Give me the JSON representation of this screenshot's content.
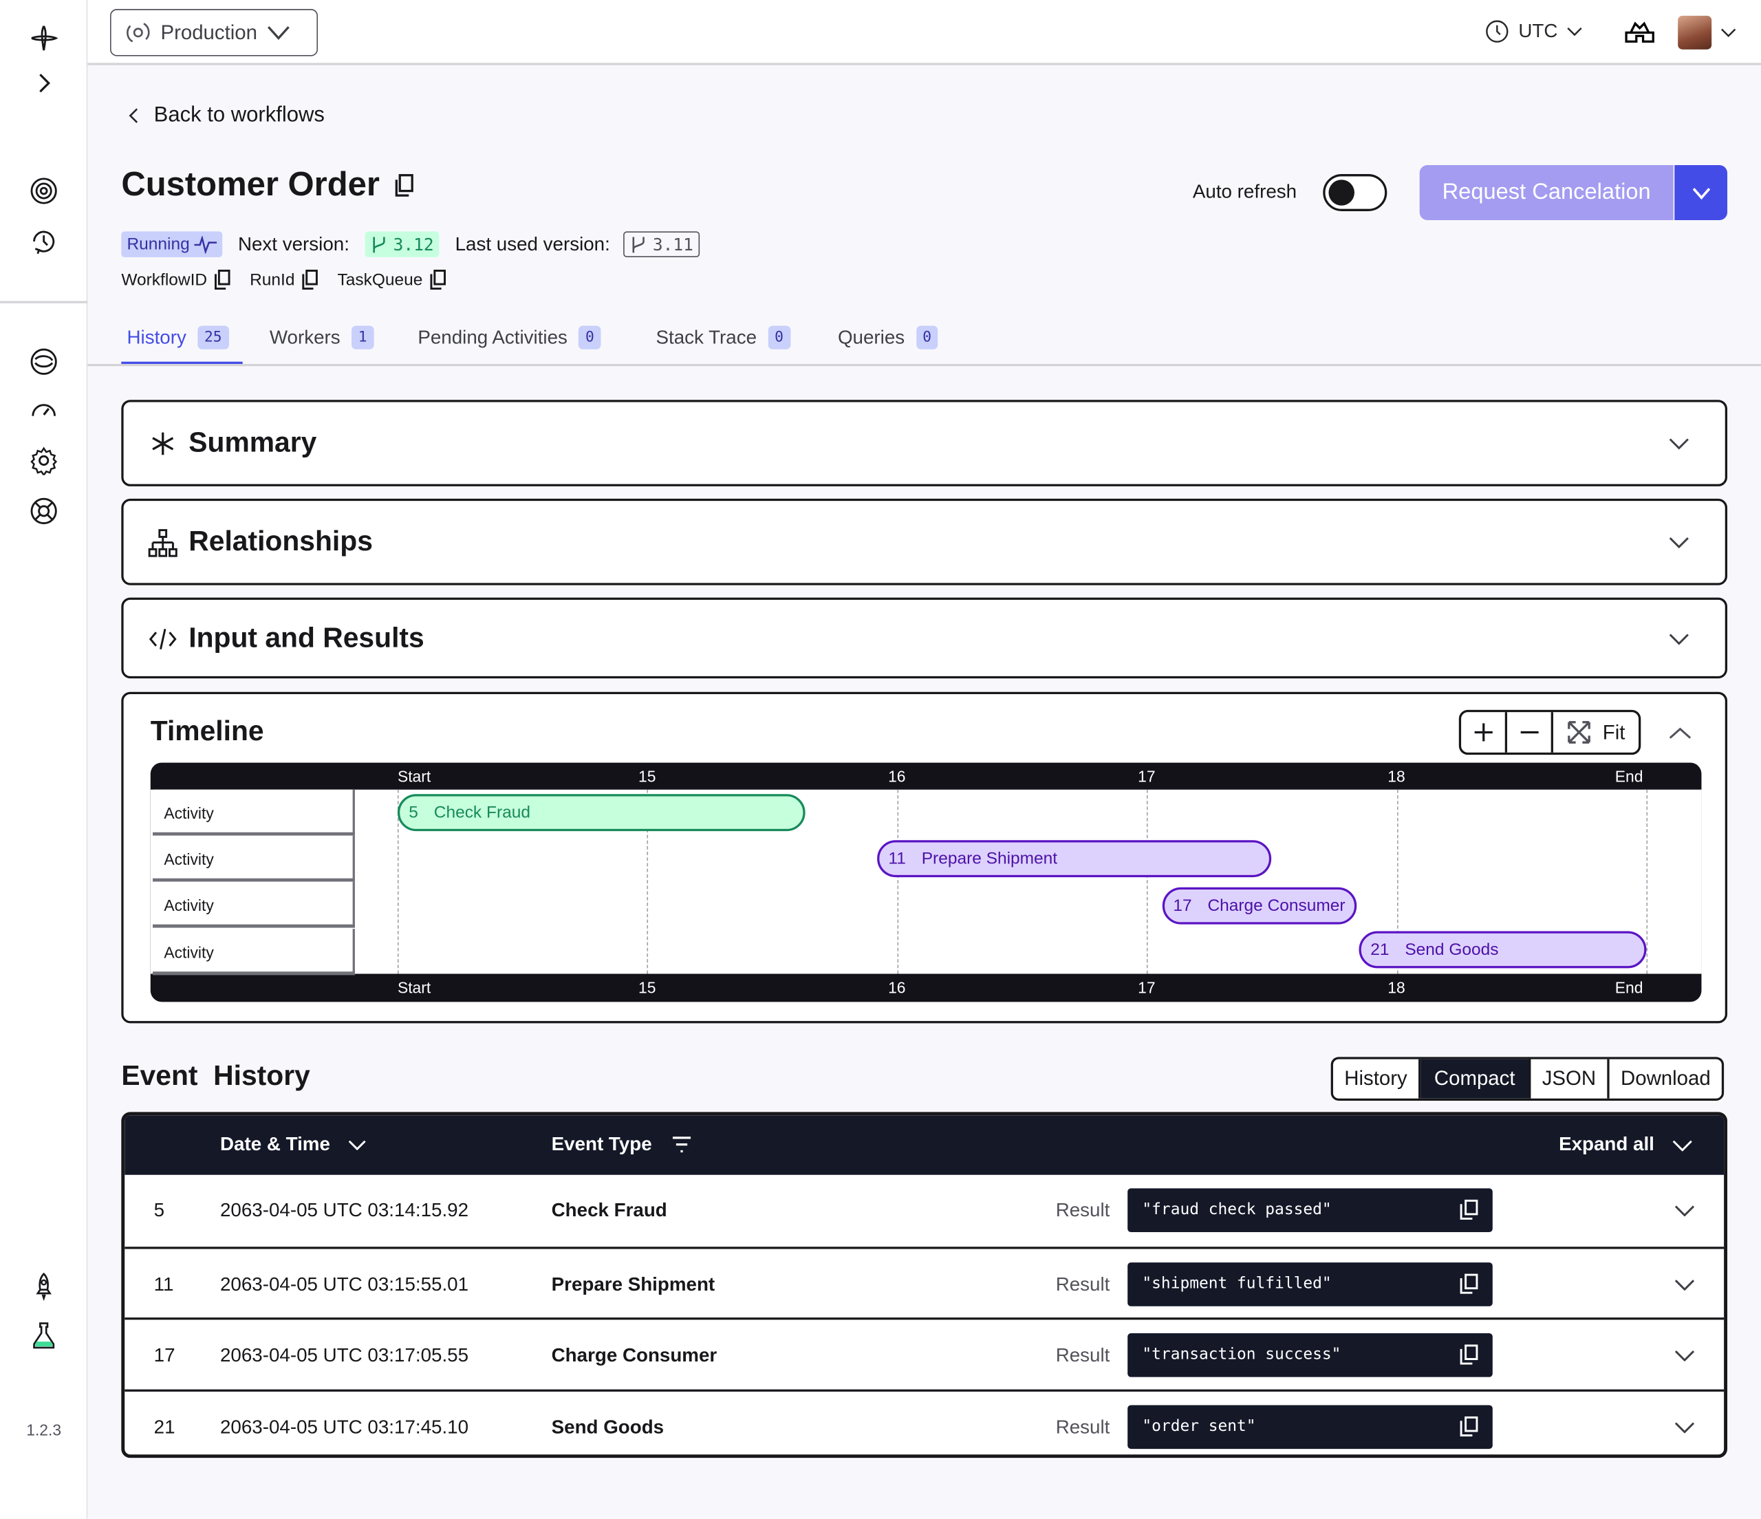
{
  "sidebar": {
    "version": "1.2.3"
  },
  "topbar": {
    "namespace": "Production",
    "timezone": "UTC"
  },
  "header": {
    "back_label": "Back to workflows",
    "title": "Customer Order",
    "auto_refresh_label": "Auto refresh",
    "auto_refresh_on": false,
    "cancel_label": "Request Cancelation",
    "status": "Running",
    "next_version_label": "Next version:",
    "next_version": "3.12",
    "last_version_label": "Last used version:",
    "last_version": "3.11",
    "ids": [
      "WorkflowID",
      "RunId",
      "TaskQueue"
    ]
  },
  "tabs": [
    {
      "label": "History",
      "count": "25",
      "active": true
    },
    {
      "label": "Workers",
      "count": "1"
    },
    {
      "label": "Pending Activities",
      "count": "0"
    },
    {
      "label": "Stack Trace",
      "count": "0"
    },
    {
      "label": "Queries",
      "count": "0"
    }
  ],
  "sections": {
    "summary": "Summary",
    "relationships": "Relationships",
    "input": "Input and Results",
    "timeline": "Timeline",
    "fit": "Fit"
  },
  "timeline": {
    "ticks": [
      "Start",
      "15",
      "16",
      "17",
      "18",
      "End"
    ],
    "row_label": "Activity",
    "bars": [
      {
        "id": "5",
        "name": "Check Fraud",
        "start": 0,
        "end": 1.63,
        "status": "completed"
      },
      {
        "id": "11",
        "name": "Prepare Shipment",
        "start": 1.92,
        "end": 3.5,
        "status": "running"
      },
      {
        "id": "17",
        "name": "Charge Consumer",
        "start": 3.06,
        "end": 3.84,
        "status": "running"
      },
      {
        "id": "21",
        "name": "Send Goods",
        "start": 3.85,
        "end": 5.0,
        "status": "running"
      }
    ]
  },
  "event_history": {
    "title": "Event  History",
    "views": [
      "History",
      "Compact",
      "JSON",
      "Download"
    ],
    "active_view": "Compact",
    "columns": {
      "date": "Date & Time",
      "type": "Event Type",
      "expand": "Expand all"
    },
    "rows": [
      {
        "id": "5",
        "date": "2063-04-05 UTC 03:14:15.92",
        "type": "Check Fraud",
        "label": "Result",
        "value": "\"fraud check passed\""
      },
      {
        "id": "11",
        "date": "2063-04-05 UTC 03:15:55.01",
        "type": "Prepare Shipment",
        "label": "Result",
        "value": "\"shipment fulfilled\""
      },
      {
        "id": "17",
        "date": "2063-04-05 UTC 03:17:05.55",
        "type": "Charge Consumer",
        "label": "Result",
        "value": "\"transaction success\""
      },
      {
        "id": "21",
        "date": "2063-04-05 UTC 03:17:45.10",
        "type": "Send Goods",
        "label": "Result",
        "value": "\"order sent\""
      }
    ]
  },
  "colors": {
    "accent": "#444ce7",
    "dark": "#141827",
    "completed_bg": "#c6ffdb",
    "completed_border": "#178a5c",
    "running_bg": "#ddd2fd",
    "running_border": "#5b14c4"
  }
}
